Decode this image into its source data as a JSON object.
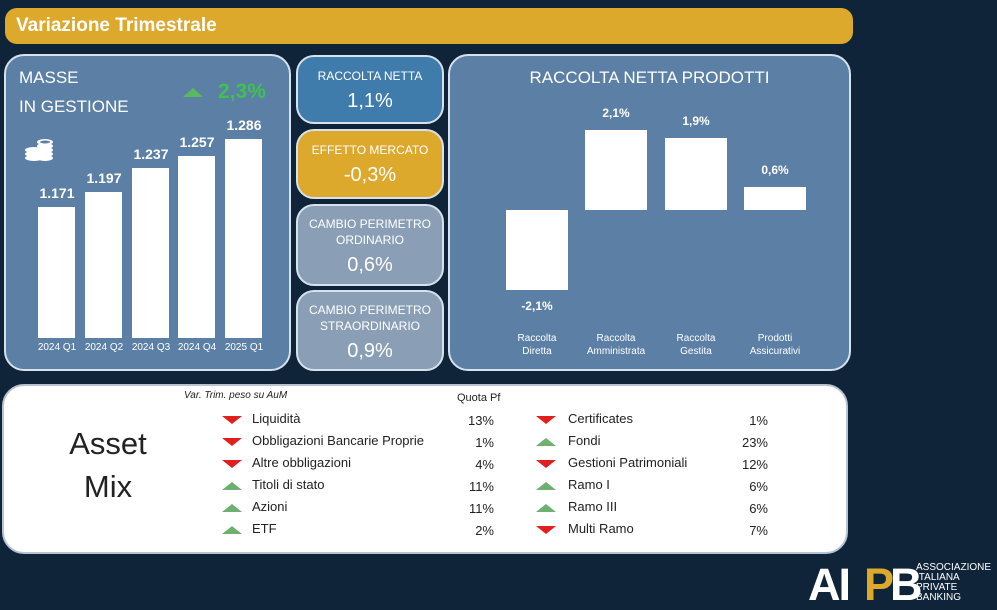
{
  "header": {
    "title": "Variazione Trimestrale"
  },
  "masse": {
    "title_line1": "MASSE",
    "title_line2": "IN GESTIONE",
    "delta": "2,3%",
    "icon": "coins-icon"
  },
  "kpis": [
    {
      "label_line1": "RACCOLTA NETTA",
      "label_line2": "",
      "value": "1,1%",
      "color": "#3f7cac"
    },
    {
      "label_line1": "EFFETTO MERCATO",
      "label_line2": "",
      "value": "-0,3%",
      "color": "#dda92c"
    },
    {
      "label_line1": "CAMBIO PERIMETRO",
      "label_line2": "ORDINARIO",
      "value": "0,6%",
      "color": "#8a9fb5"
    },
    {
      "label_line1": "CAMBIO PERIMETRO",
      "label_line2": "STRAORDINARIO",
      "value": "0,9%",
      "color": "#8a9fb5"
    }
  ],
  "chart_data": [
    {
      "type": "bar",
      "categories": [
        "2024 Q1",
        "2024 Q2",
        "2024 Q3",
        "2024 Q4",
        "2025 Q1"
      ],
      "values": [
        1171,
        1197,
        1237,
        1257,
        1286
      ],
      "labels": [
        "1.171",
        "1.197",
        "1.237",
        "1.257",
        "1.286"
      ],
      "ylim": [
        950,
        1300
      ]
    },
    {
      "type": "bar",
      "title": "RACCOLTA NETTA PRODOTTI",
      "categories": [
        [
          "Raccolta",
          "Diretta"
        ],
        [
          "Raccolta",
          "Amministrata"
        ],
        [
          "Raccolta",
          "Gestita"
        ],
        [
          "Prodotti",
          "Assicurativi"
        ]
      ],
      "values": [
        -2.1,
        2.1,
        1.9,
        0.6
      ],
      "labels": [
        "-2,1%",
        "2,1%",
        "1,9%",
        "0,6%"
      ],
      "style": "waterfall"
    }
  ],
  "asset_mix": {
    "title_line1": "Asset",
    "title_line2": "Mix",
    "note": "Var. Trim. peso su AuM",
    "quota_header": "Quota Pf",
    "left": [
      {
        "label": "Liquidità",
        "value": "13%",
        "trend": "down"
      },
      {
        "label": "Obbligazioni Bancarie Proprie",
        "value": "1%",
        "trend": "down"
      },
      {
        "label": "Altre obbligazioni",
        "value": "4%",
        "trend": "down"
      },
      {
        "label": "Titoli di stato",
        "value": "11%",
        "trend": "up"
      },
      {
        "label": "Azioni",
        "value": "11%",
        "trend": "up"
      },
      {
        "label": "ETF",
        "value": "2%",
        "trend": "up"
      }
    ],
    "right": [
      {
        "label": "Certificates",
        "value": "1%",
        "trend": "down"
      },
      {
        "label": "Fondi",
        "value": "23%",
        "trend": "up"
      },
      {
        "label": "Gestioni Patrimoniali",
        "value": "12%",
        "trend": "down"
      },
      {
        "label": "Ramo I",
        "value": "6%",
        "trend": "up"
      },
      {
        "label": "Ramo III",
        "value": "6%",
        "trend": "up"
      },
      {
        "label": "Multi Ramo",
        "value": "7%",
        "trend": "down"
      }
    ]
  },
  "logo": {
    "letters_ai": "AI",
    "letter_p": "P",
    "letter_b": "B",
    "text_lines": [
      "ASSOCIAZIONE",
      "ITALIANA",
      "PRIVATE",
      "BANKING"
    ]
  }
}
